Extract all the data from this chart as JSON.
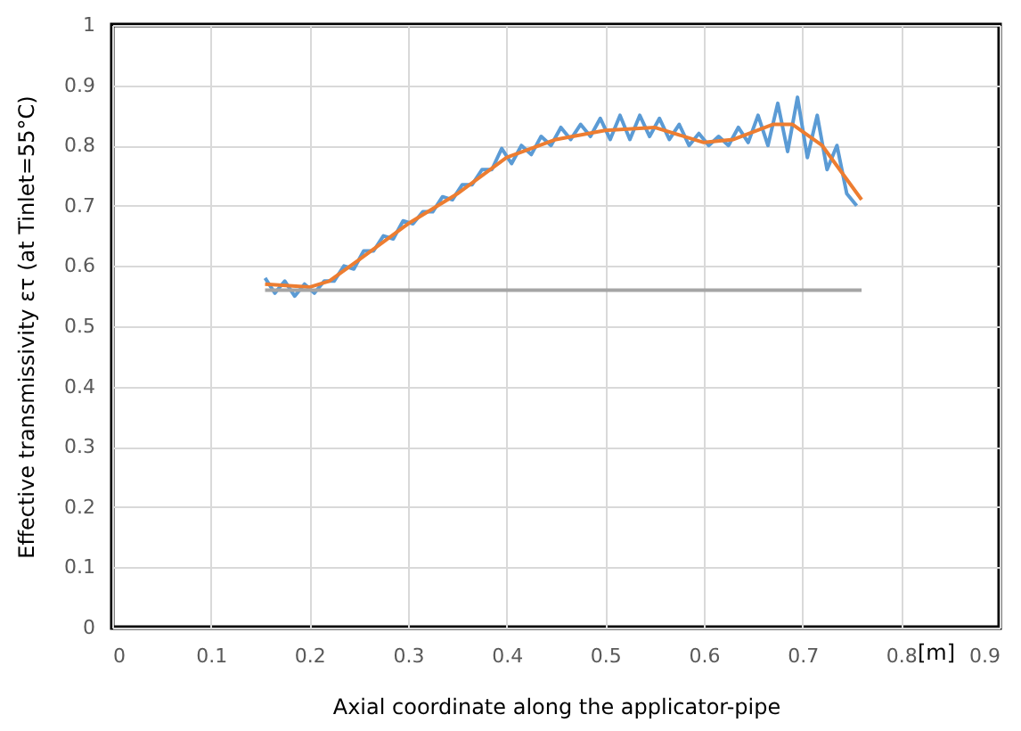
{
  "chart_data": {
    "type": "line",
    "xlabel": "Axial coordinate along the applicator-pipe",
    "ylabel": "Effective transmissivity  ετ (at Tinlet=55°C)",
    "annotations": [
      "[m]"
    ],
    "xlim": [
      0,
      0.9
    ],
    "xticks": [
      0,
      0.1,
      0.2,
      0.3,
      0.4,
      0.5,
      0.6,
      0.7,
      0.8,
      0.9
    ],
    "ylim": [
      0,
      1
    ],
    "yticks": [
      0,
      0.1,
      0.2,
      0.3,
      0.4,
      0.5,
      0.6,
      0.7,
      0.8,
      0.9,
      1
    ],
    "grid": true,
    "marker": "none",
    "line_style": "solid",
    "series": [
      {
        "color": "#5b9bd5",
        "x": [
          0.155,
          0.165,
          0.175,
          0.185,
          0.195,
          0.205,
          0.215,
          0.225,
          0.235,
          0.245,
          0.255,
          0.265,
          0.275,
          0.285,
          0.295,
          0.305,
          0.315,
          0.325,
          0.335,
          0.345,
          0.355,
          0.365,
          0.375,
          0.385,
          0.395,
          0.405,
          0.415,
          0.425,
          0.435,
          0.445,
          0.455,
          0.465,
          0.475,
          0.485,
          0.495,
          0.505,
          0.515,
          0.525,
          0.535,
          0.545,
          0.555,
          0.565,
          0.575,
          0.585,
          0.595,
          0.605,
          0.615,
          0.625,
          0.635,
          0.645,
          0.655,
          0.665,
          0.675,
          0.685,
          0.695,
          0.705,
          0.715,
          0.725,
          0.735,
          0.745,
          0.755
        ],
        "values": [
          0.58,
          0.555,
          0.575,
          0.55,
          0.57,
          0.555,
          0.575,
          0.575,
          0.6,
          0.595,
          0.625,
          0.625,
          0.65,
          0.645,
          0.675,
          0.67,
          0.69,
          0.69,
          0.715,
          0.71,
          0.735,
          0.735,
          0.76,
          0.76,
          0.795,
          0.77,
          0.8,
          0.785,
          0.815,
          0.8,
          0.83,
          0.81,
          0.835,
          0.815,
          0.845,
          0.81,
          0.85,
          0.81,
          0.85,
          0.815,
          0.845,
          0.81,
          0.835,
          0.8,
          0.82,
          0.8,
          0.815,
          0.8,
          0.83,
          0.805,
          0.85,
          0.8,
          0.87,
          0.79,
          0.88,
          0.78,
          0.85,
          0.76,
          0.8,
          0.72,
          0.7
        ]
      },
      {
        "color": "#ed7d31",
        "x": [
          0.155,
          0.2,
          0.22,
          0.25,
          0.3,
          0.35,
          0.4,
          0.45,
          0.5,
          0.55,
          0.6,
          0.63,
          0.67,
          0.69,
          0.72,
          0.76
        ],
        "values": [
          0.57,
          0.565,
          0.575,
          0.61,
          0.67,
          0.72,
          0.78,
          0.81,
          0.825,
          0.83,
          0.805,
          0.81,
          0.835,
          0.835,
          0.8,
          0.71
        ]
      },
      {
        "color": "#a5a5a5",
        "x": [
          0.155,
          0.76
        ],
        "values": [
          0.56,
          0.56
        ]
      }
    ]
  }
}
